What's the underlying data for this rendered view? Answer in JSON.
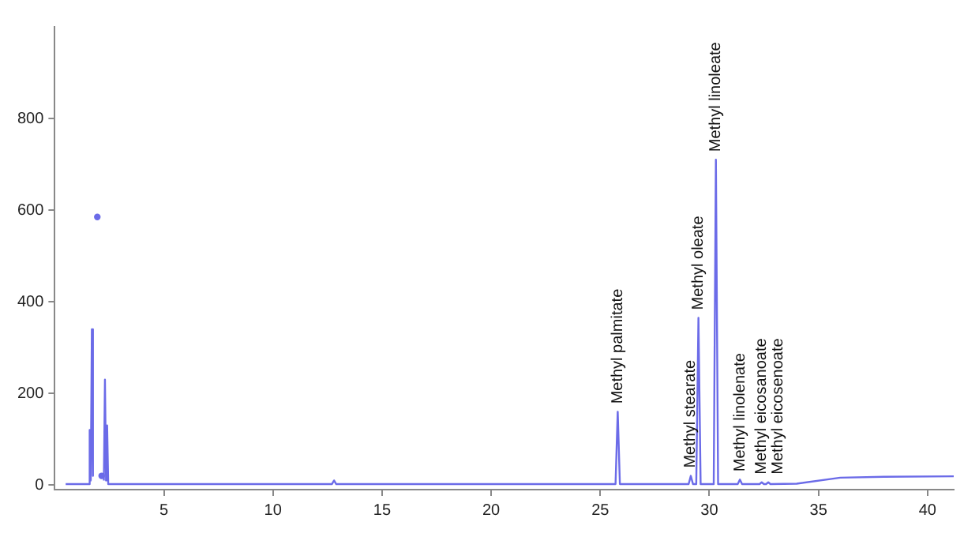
{
  "chart_data": {
    "type": "line",
    "x": [
      0.5,
      1.55,
      1.6,
      1.65,
      1.7,
      1.75,
      1.8,
      1.85,
      1.9,
      1.95,
      2.0,
      2.05,
      2.1,
      2.15,
      2.2,
      2.25,
      2.3,
      2.35,
      2.4,
      2.45,
      2.6,
      12.7,
      12.8,
      12.9,
      25.7,
      25.8,
      25.9,
      29.05,
      29.15,
      29.25,
      29.4,
      29.5,
      29.6,
      30.2,
      30.3,
      30.4,
      31.3,
      31.4,
      31.5,
      32.3,
      32.4,
      32.5,
      32.6,
      32.7,
      32.8,
      34.0,
      36.0,
      38.0,
      41.2
    ],
    "series": [
      {
        "color": "#6b6be8",
        "values": [
          2,
          2,
          120,
          10,
          340,
          20,
          null,
          null,
          null,
          585,
          null,
          null,
          null,
          20,
          null,
          10,
          230,
          10,
          130,
          2,
          2,
          2,
          10,
          2,
          2,
          160,
          2,
          2,
          20,
          2,
          2,
          365,
          2,
          2,
          710,
          2,
          2,
          12,
          2,
          2,
          6,
          2,
          2,
          6,
          2,
          3,
          16,
          18,
          19
        ]
      }
    ],
    "xlim": [
      0,
      41.2
    ],
    "xticks": [
      5,
      10,
      15,
      20,
      25,
      30,
      35,
      40
    ],
    "ylim": [
      -10,
      1000
    ],
    "yticks": [
      0,
      200,
      400,
      600,
      800
    ],
    "grid": false,
    "legend": false,
    "marker": "none",
    "line_style": "solid",
    "annotations": [
      {
        "text": "Methyl palmitate",
        "x": 25.8,
        "y": 160
      },
      {
        "text": "Methyl stearate",
        "x": 29.15,
        "y": 20
      },
      {
        "text": "Methyl oleate",
        "x": 29.5,
        "y": 365
      },
      {
        "text": "Methyl linoleate",
        "x": 30.3,
        "y": 710
      },
      {
        "text": "Methyl linolenate",
        "x": 31.4,
        "y": 12
      },
      {
        "text": "Methyl eicosanoate",
        "x": 32.4,
        "y": 6
      },
      {
        "text": "Methyl eicosenoate",
        "x": 32.7,
        "y": 6
      }
    ]
  }
}
